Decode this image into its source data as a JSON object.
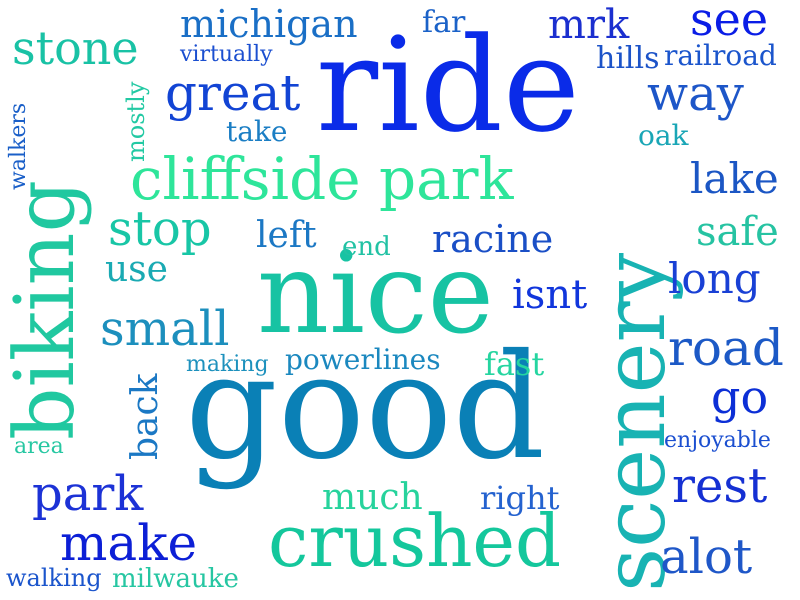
{
  "words": {
    "ride": {
      "text": "ride",
      "color": "#0a2be8"
    },
    "good": {
      "text": "good",
      "color": "#0a80b6"
    },
    "nice": {
      "text": "nice",
      "color": "#17c3a3"
    },
    "scenery": {
      "text": "scenery",
      "color": "#18b3b3"
    },
    "biking": {
      "text": "biking",
      "color": "#20c8a0"
    },
    "crushed": {
      "text": "crushed",
      "color": "#14c79c"
    },
    "cliffside": {
      "text": "cliffside park",
      "color": "#2ee59a"
    },
    "great": {
      "text": "great",
      "color": "#1244d4"
    },
    "stone": {
      "text": "stone",
      "color": "#19c2a5"
    },
    "michigan": {
      "text": "michigan",
      "color": "#1a6fc6"
    },
    "see": {
      "text": "see",
      "color": "#0a1de6"
    },
    "mrk": {
      "text": "mrk",
      "color": "#1b2fcf"
    },
    "way": {
      "text": "way",
      "color": "#1d56c8"
    },
    "lake": {
      "text": "lake",
      "color": "#1b56c4"
    },
    "safe": {
      "text": "safe",
      "color": "#26c3a2"
    },
    "long": {
      "text": "long",
      "color": "#1940d5"
    },
    "road": {
      "text": "road",
      "color": "#1c59c6"
    },
    "go": {
      "text": "go",
      "color": "#0c2fd6"
    },
    "rest": {
      "text": "rest",
      "color": "#1530d3"
    },
    "alot": {
      "text": "alot",
      "color": "#1f57c8"
    },
    "park": {
      "text": "park",
      "color": "#1c32d6"
    },
    "make": {
      "text": "make",
      "color": "#0c1fd6"
    },
    "small": {
      "text": "small",
      "color": "#1c8fbd"
    },
    "stop": {
      "text": "stop",
      "color": "#18c6a6"
    },
    "use": {
      "text": "use",
      "color": "#1aaab3"
    },
    "left": {
      "text": "left",
      "color": "#1c78c4"
    },
    "racine": {
      "text": "racine",
      "color": "#1a4fc6"
    },
    "isnt": {
      "text": "isnt",
      "color": "#1136dc"
    },
    "much": {
      "text": "much",
      "color": "#27d39c"
    },
    "right": {
      "text": "right",
      "color": "#2462cf"
    },
    "powerlines": {
      "text": "powerlines",
      "color": "#1b88bf"
    },
    "making": {
      "text": "making",
      "color": "#1d91bd"
    },
    "fast": {
      "text": "fast",
      "color": "#25d5a0"
    },
    "back": {
      "text": "back",
      "color": "#1b78c4"
    },
    "end": {
      "text": "end",
      "color": "#22c2a4"
    },
    "take": {
      "text": "take",
      "color": "#1b7ec4"
    },
    "virtually": {
      "text": "virtually",
      "color": "#1b4fd0"
    },
    "mostly": {
      "text": "mostly",
      "color": "#22c9a3"
    },
    "walkers": {
      "text": "walkers",
      "color": "#1a5fc8"
    },
    "far": {
      "text": "far",
      "color": "#1b62c8"
    },
    "hills": {
      "text": "hills",
      "color": "#1c53c8"
    },
    "railroad": {
      "text": "railroad",
      "color": "#1b55cc"
    },
    "oak": {
      "text": "oak",
      "color": "#1aa6b6"
    },
    "enjoyable": {
      "text": "enjoyable",
      "color": "#1b4fd0"
    },
    "area": {
      "text": "area",
      "color": "#26c7a2"
    },
    "walking": {
      "text": "walking",
      "color": "#1b55cc"
    },
    "milwauke": {
      "text": "milwauke",
      "color": "#26c6a2"
    }
  }
}
